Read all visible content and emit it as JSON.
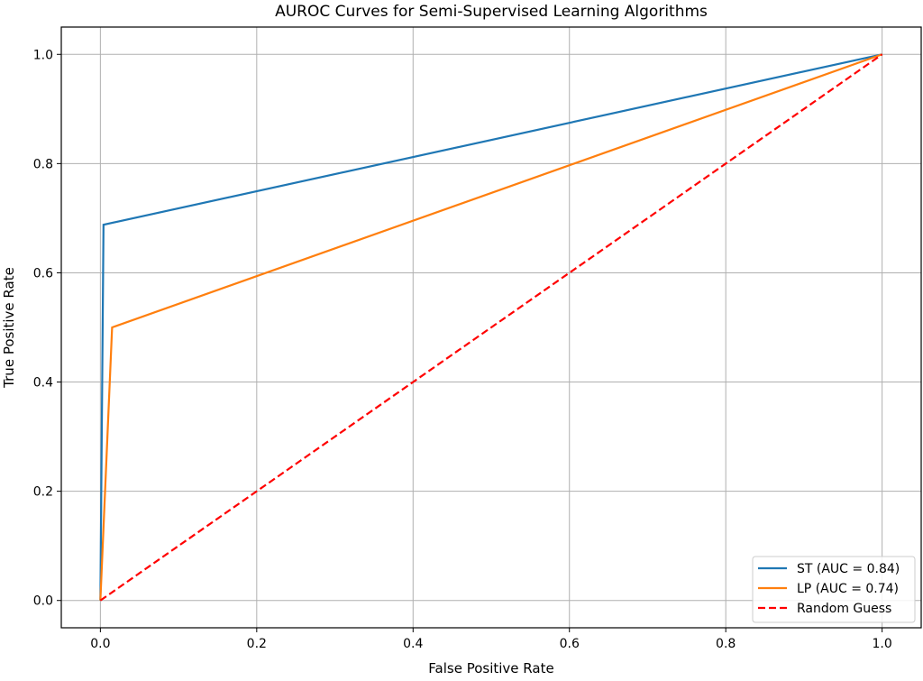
{
  "chart_data": {
    "type": "line",
    "title": "AUROC Curves for Semi-Supervised Learning Algorithms",
    "xlabel": "False Positive Rate",
    "ylabel": "True Positive Rate",
    "xlim": [
      -0.05,
      1.05
    ],
    "ylim": [
      -0.05,
      1.05
    ],
    "xticks": [
      0.0,
      0.2,
      0.4,
      0.6,
      0.8,
      1.0
    ],
    "yticks": [
      0.0,
      0.2,
      0.4,
      0.6,
      0.8,
      1.0
    ],
    "xtick_labels": [
      "0.0",
      "0.2",
      "0.4",
      "0.6",
      "0.8",
      "1.0"
    ],
    "ytick_labels": [
      "0.0",
      "0.2",
      "0.4",
      "0.6",
      "0.8",
      "1.0"
    ],
    "grid": true,
    "legend_position": "lower-right",
    "series": [
      {
        "name": "ST (AUC = 0.84)",
        "color": "#1f77b4",
        "dash": false,
        "x": [
          0.0,
          0.004,
          1.0
        ],
        "y": [
          0.0,
          0.688,
          1.0
        ]
      },
      {
        "name": "LP (AUC = 0.74)",
        "color": "#ff7f0e",
        "dash": false,
        "x": [
          0.0,
          0.015,
          1.0
        ],
        "y": [
          0.0,
          0.5,
          1.0
        ]
      },
      {
        "name": "Random Guess",
        "color": "#ff0000",
        "dash": true,
        "x": [
          0.0,
          1.0
        ],
        "y": [
          0.0,
          1.0
        ]
      }
    ]
  }
}
